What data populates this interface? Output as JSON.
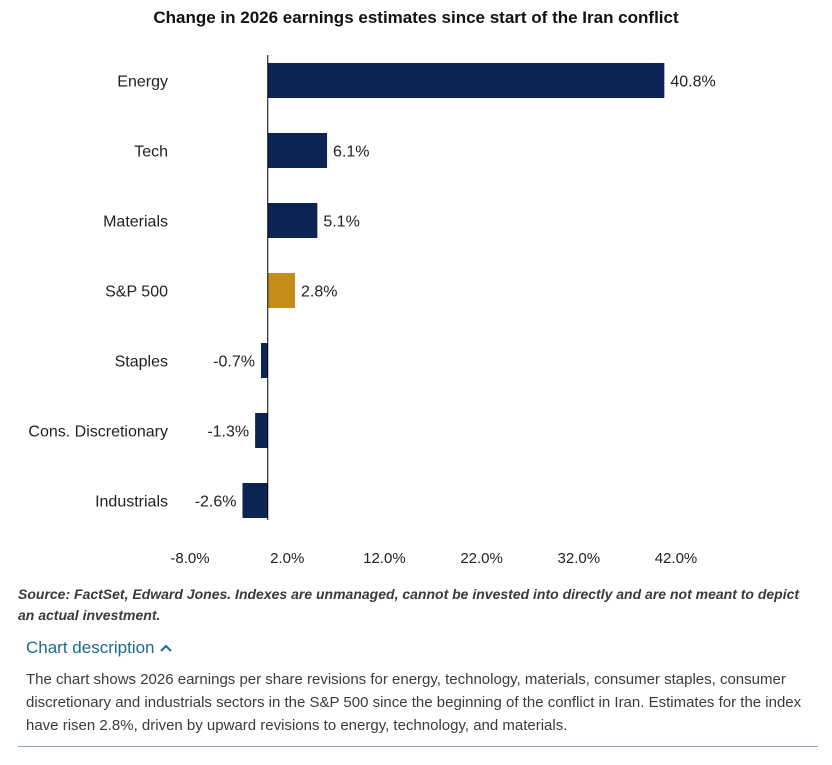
{
  "chart_data": {
    "type": "bar",
    "orientation": "horizontal",
    "title": "Change in 2026 earnings estimates since start of the Iran conflict",
    "categories": [
      "Energy",
      "Tech",
      "Materials",
      "S&P 500",
      "Staples",
      "Cons. Discretionary",
      "Industrials"
    ],
    "values": [
      40.8,
      6.1,
      5.1,
      2.8,
      -0.7,
      -1.3,
      -2.6
    ],
    "data_labels": [
      "40.8%",
      "6.1%",
      "5.1%",
      "2.8%",
      "-0.7%",
      "-1.3%",
      "-2.6%"
    ],
    "highlight_category": "S&P 500",
    "xlim": [
      -8.0,
      42.0
    ],
    "xticks": [
      -8.0,
      2.0,
      12.0,
      22.0,
      32.0,
      42.0
    ],
    "xtick_labels": [
      "-8.0%",
      "2.0%",
      "12.0%",
      "22.0%",
      "32.0%",
      "42.0%"
    ],
    "xlabel": "",
    "ylabel": "",
    "grid": false,
    "colors": {
      "bar": "#0b2454",
      "highlight": "#c68c19",
      "axis": "#000000"
    }
  },
  "source_note": "Source: FactSet, Edward Jones. Indexes are unmanaged, cannot be invested into directly and are not meant to depict an actual investment.",
  "description": {
    "toggle_label": "Chart description",
    "toggle_icon": "chevron-up-icon",
    "text": "The chart shows 2026 earnings per share revisions for energy, technology, materials, consumer staples, consumer discretionary and industrials sectors in the S&P 500 since the beginning of the conflict in Iran. Estimates for the index have risen 2.8%, driven by upward revisions to energy, technology, and materials.",
    "accent_color": "#1e6a8c"
  }
}
